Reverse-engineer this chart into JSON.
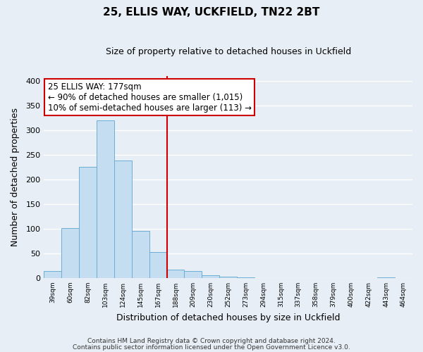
{
  "title": "25, ELLIS WAY, UCKFIELD, TN22 2BT",
  "subtitle": "Size of property relative to detached houses in Uckfield",
  "xlabel": "Distribution of detached houses by size in Uckfield",
  "ylabel": "Number of detached properties",
  "bar_labels": [
    "39sqm",
    "60sqm",
    "82sqm",
    "103sqm",
    "124sqm",
    "145sqm",
    "167sqm",
    "188sqm",
    "209sqm",
    "230sqm",
    "252sqm",
    "273sqm",
    "294sqm",
    "315sqm",
    "337sqm",
    "358sqm",
    "379sqm",
    "400sqm",
    "422sqm",
    "443sqm",
    "464sqm"
  ],
  "bar_heights": [
    14,
    102,
    225,
    320,
    238,
    96,
    53,
    17,
    14,
    5,
    3,
    1,
    0,
    0,
    0,
    0,
    0,
    0,
    0,
    2,
    0
  ],
  "bar_color": "#c5ddf0",
  "bar_edge_color": "#6baed6",
  "vline_color": "#cc0000",
  "annotation_line1": "25 ELLIS WAY: 177sqm",
  "annotation_line2": "← 90% of detached houses are smaller (1,015)",
  "annotation_line3": "10% of semi-detached houses are larger (113) →",
  "ylim": [
    0,
    410
  ],
  "yticks": [
    0,
    50,
    100,
    150,
    200,
    250,
    300,
    350,
    400
  ],
  "background_color": "#e8eef5",
  "grid_color": "#ffffff",
  "footer_line1": "Contains HM Land Registry data © Crown copyright and database right 2024.",
  "footer_line2": "Contains public sector information licensed under the Open Government Licence v3.0."
}
